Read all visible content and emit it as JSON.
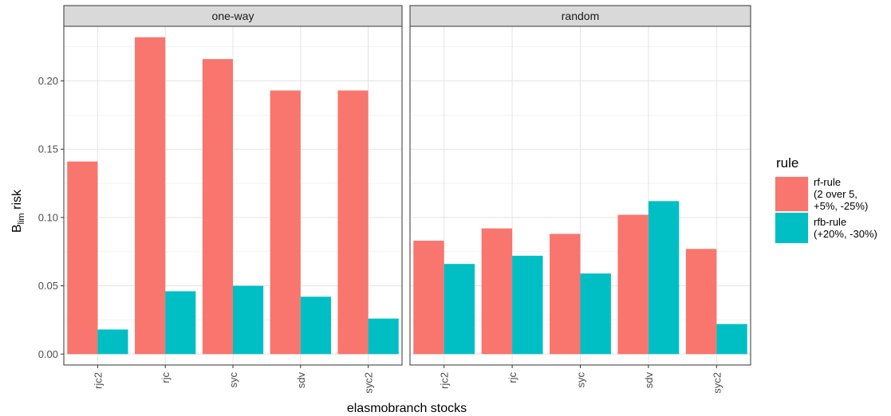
{
  "chart_data": {
    "type": "bar",
    "xlabel": "elasmobranch stocks",
    "ylabel_main": "B",
    "ylabel_sub": "lim",
    "ylabel_tail": " risk",
    "ylim": [
      -0.008,
      0.24
    ],
    "yticks": [
      0.0,
      0.05,
      0.1,
      0.15,
      0.2
    ],
    "ytick_labels": [
      "0.00",
      "0.05",
      "0.10",
      "0.15",
      "0.20"
    ],
    "grid": true,
    "legend": {
      "title": "rule",
      "placement": "right",
      "entries": [
        {
          "key": "rf",
          "lines": [
            "rf-rule",
            "(2 over 5,",
            "+5%, -25%)"
          ],
          "color": "#F8766D"
        },
        {
          "key": "rfb",
          "lines": [
            "rfb-rule",
            "(+20%, -30%)"
          ],
          "color": "#00BFC4"
        }
      ]
    },
    "panels": [
      {
        "title": "one-way",
        "categories": [
          "rjc2",
          "rjc",
          "syc",
          "sdv",
          "syc2"
        ],
        "series": [
          {
            "key": "rf",
            "values": [
              0.141,
              0.232,
              0.216,
              0.193,
              0.193
            ]
          },
          {
            "key": "rfb",
            "values": [
              0.018,
              0.046,
              0.05,
              0.042,
              0.026
            ]
          }
        ]
      },
      {
        "title": "random",
        "categories": [
          "rjc2",
          "rjc",
          "syc",
          "sdv",
          "syc2"
        ],
        "series": [
          {
            "key": "rf",
            "values": [
              0.083,
              0.092,
              0.088,
              0.102,
              0.077
            ]
          },
          {
            "key": "rfb",
            "values": [
              0.066,
              0.072,
              0.059,
              0.112,
              0.022
            ]
          }
        ]
      }
    ]
  }
}
